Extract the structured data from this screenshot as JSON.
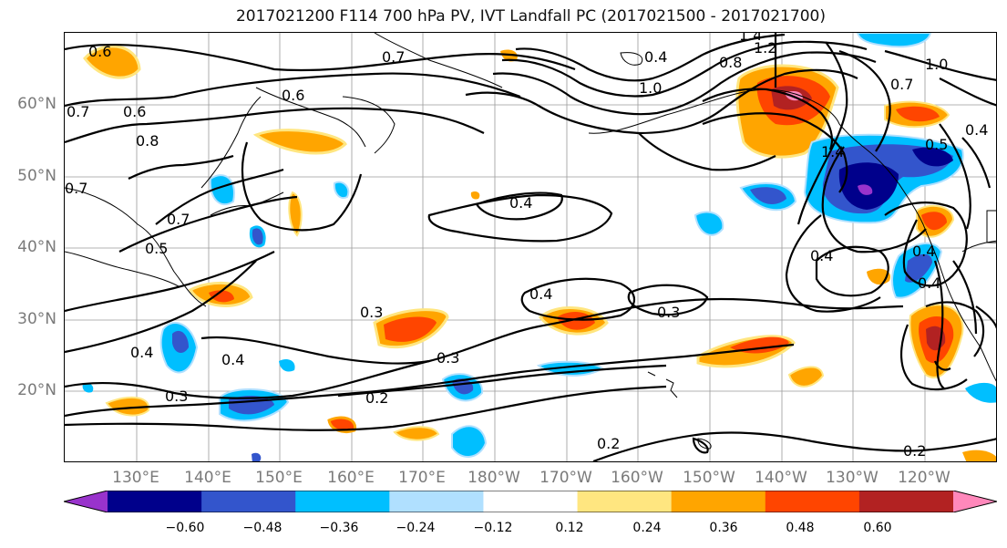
{
  "title": "2017021200 F114 700 hPa PV, IVT Landfall PC (2017021500 - 2017021700)",
  "chart_data": {
    "type": "heatmap",
    "title": "2017021200 F114 700 hPa PV, IVT Landfall PC (2017021500 - 2017021700)",
    "lat_ticks": [
      "60°N",
      "50°N",
      "40°N",
      "30°N",
      "20°N"
    ],
    "lon_ticks": [
      "130°E",
      "140°E",
      "150°E",
      "160°E",
      "170°E",
      "180°W",
      "170°W",
      "160°W",
      "150°W",
      "140°W",
      "130°W",
      "120°W"
    ],
    "colorbar": {
      "levels": [
        "−0.60",
        "−0.48",
        "−0.36",
        "−0.24",
        "−0.12",
        "0.12",
        "0.24",
        "0.36",
        "0.48",
        "0.60"
      ],
      "colors": [
        "#9933cc",
        "#00008b",
        "#3355cc",
        "#00bfff",
        "#b0e0ff",
        "#ffffff",
        "#ffe680",
        "#ffa500",
        "#ff4500",
        "#b22222",
        "#ff88bb"
      ],
      "extend": "both"
    },
    "contour_labels": [
      "0.6",
      "0.7",
      "0.6",
      "0.7",
      "0.6",
      "0.8",
      "0.7",
      "0.7",
      "0.5",
      "0.4",
      "0.3",
      "0.4",
      "0.3",
      "0.2",
      "0.3",
      "0.4",
      "0.4",
      "0.3",
      "0.2",
      "0.2",
      "0.4",
      "0.4",
      "0.4",
      "0.8",
      "1.0",
      "1.2",
      "1.4",
      "1.4",
      "1.0",
      "0.7",
      "0.5",
      "0.4",
      "0.4"
    ]
  }
}
